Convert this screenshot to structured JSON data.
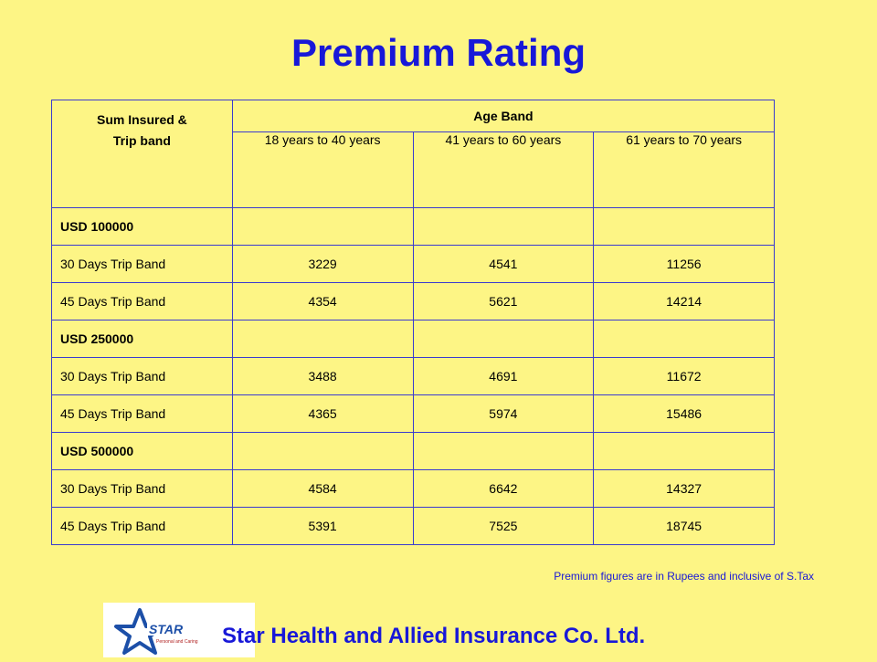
{
  "title": "Premium Rating",
  "table": {
    "sum_header_line1": "Sum Insured &",
    "sum_header_line2": "Trip band",
    "age_band_header": "Age Band",
    "age_columns": [
      "18 years to 40 years",
      "41 years to 60 years",
      "61 years to 70 years"
    ],
    "rows": [
      {
        "label": "USD 100000",
        "group": true,
        "values": [
          "",
          "",
          ""
        ]
      },
      {
        "label": "30 Days Trip Band",
        "group": false,
        "values": [
          "3229",
          "4541",
          "11256"
        ]
      },
      {
        "label": "45 Days Trip Band",
        "group": false,
        "values": [
          "4354",
          "5621",
          "14214"
        ]
      },
      {
        "label": "USD 250000",
        "group": true,
        "values": [
          "",
          "",
          ""
        ]
      },
      {
        "label": "30 Days Trip Band",
        "group": false,
        "values": [
          "3488",
          "4691",
          "11672"
        ]
      },
      {
        "label": "45 Days Trip Band",
        "group": false,
        "values": [
          "4365",
          "5974",
          "15486"
        ]
      },
      {
        "label": "USD 500000",
        "group": true,
        "values": [
          "",
          "",
          ""
        ]
      },
      {
        "label": "30 Days Trip Band",
        "group": false,
        "values": [
          "4584",
          "6642",
          "14327"
        ]
      },
      {
        "label": "45 Days Trip Band",
        "group": false,
        "values": [
          "5391",
          "7525",
          "18745"
        ]
      }
    ]
  },
  "note": "Premium figures are in Rupees and inclusive of S.Tax",
  "logo": {
    "text": "STAR",
    "tagline": "Personal and Caring"
  },
  "company_name": "Star Health and Allied Insurance Co. Ltd.",
  "colors": {
    "background": "#fdf585",
    "accent": "#1818d8",
    "border": "#3a3ad0"
  }
}
